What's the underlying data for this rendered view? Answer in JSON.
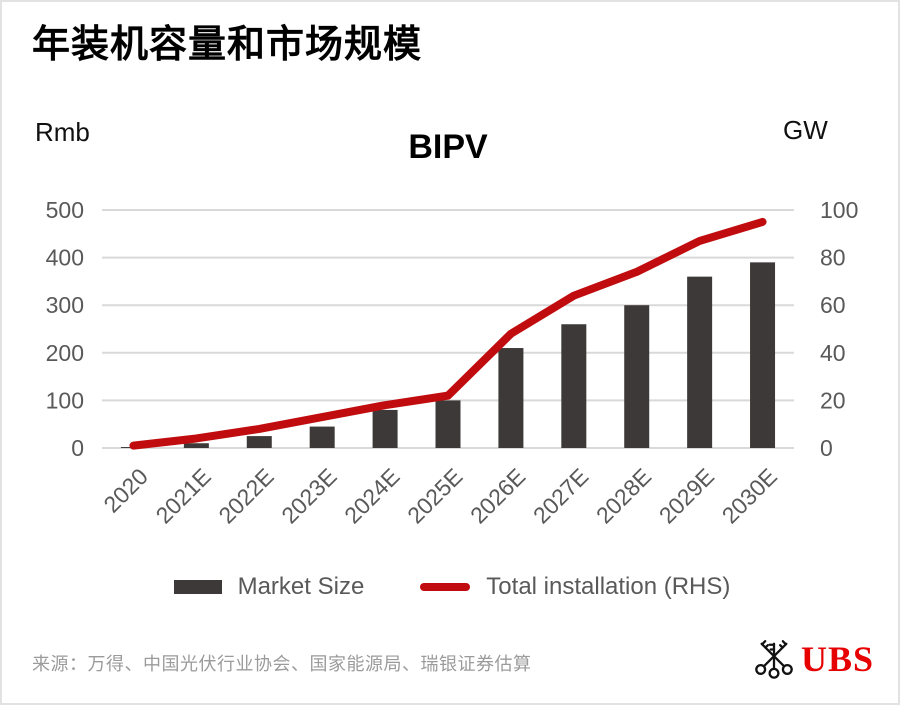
{
  "page": {
    "title": "年装机容量和市场规模",
    "source": "来源：万得、中国光伏行业协会、国家能源局、瑞银证券估算",
    "brand": "UBS",
    "brand_color": "#e60000"
  },
  "icons": {
    "brand_mark": "ubs-three-keys-emblem"
  },
  "chart_data": {
    "type": "combo",
    "title": "BIPV",
    "left_axis_label": "Rmb",
    "right_axis_label": "GW",
    "categories": [
      "2020",
      "2021E",
      "2022E",
      "2023E",
      "2024E",
      "2025E",
      "2026E",
      "2027E",
      "2028E",
      "2029E",
      "2030E"
    ],
    "series": [
      {
        "name": "Market Size",
        "type": "bar",
        "axis": "left",
        "color": "#3d3938",
        "values": [
          2,
          10,
          25,
          45,
          80,
          100,
          210,
          260,
          300,
          360,
          390
        ]
      },
      {
        "name": "Total installation (RHS)",
        "type": "line",
        "axis": "right",
        "color": "#c00c0e",
        "values": [
          1,
          4,
          8,
          13,
          18,
          22,
          48,
          64,
          74,
          87,
          95
        ]
      }
    ],
    "left_axis": {
      "min": 0,
      "max": 500,
      "step": 100
    },
    "right_axis": {
      "min": 0,
      "max": 100,
      "step": 20
    },
    "grid": true,
    "grid_color": "#d9d9d9",
    "tick_color": "#595959",
    "legend_position": "bottom"
  }
}
